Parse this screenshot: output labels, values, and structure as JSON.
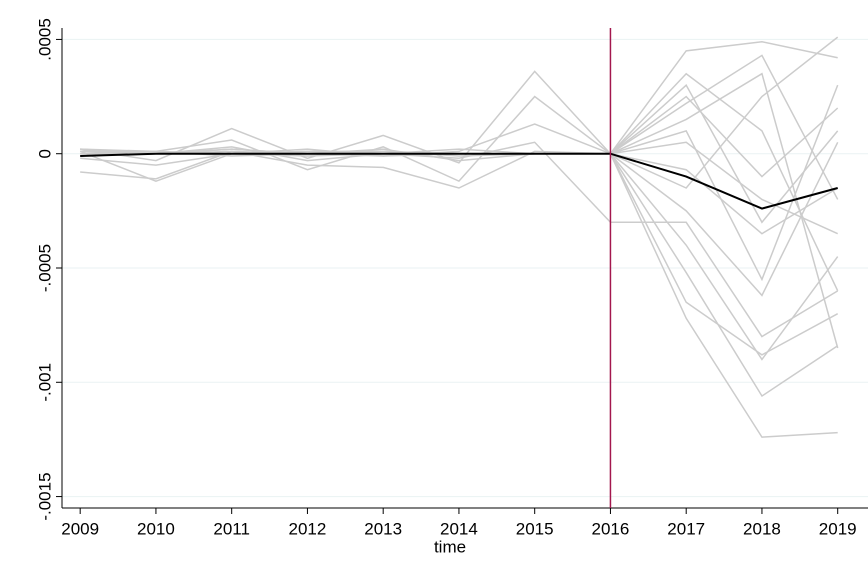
{
  "chart_data": {
    "type": "line",
    "x_label": "time",
    "x": [
      2009,
      2010,
      2011,
      2012,
      2013,
      2014,
      2015,
      2016,
      2017,
      2018,
      2019
    ],
    "xlim": [
      2008.76,
      2019.4
    ],
    "xticks": [
      2009,
      2010,
      2011,
      2012,
      2013,
      2014,
      2015,
      2016,
      2017,
      2018,
      2019
    ],
    "ylim": [
      -0.00155,
      0.00055
    ],
    "yticks": [
      {
        "value": 0.0005,
        "label": ".0005"
      },
      0,
      {
        "value": -0.0005,
        "label": "-.0005"
      },
      {
        "value": -0.001,
        "label": "-.001"
      },
      {
        "value": -0.0015,
        "label": "-.0015"
      }
    ],
    "grid": true,
    "vline": {
      "x": 2016,
      "color": "#a3174e"
    },
    "series": [
      {
        "color": "#cccccc",
        "values": [
          1e-05,
          0,
          2e-05,
          0,
          1e-05,
          -1e-05,
          0,
          0,
          0.00045,
          0.00049,
          0.00042
        ]
      },
      {
        "color": "#cccccc",
        "values": [
          -8e-05,
          -0.00011,
          1e-05,
          -5e-05,
          -6e-05,
          -0.00015,
          1e-05,
          0,
          -0.00072,
          -0.00124,
          -0.00122
        ]
      },
      {
        "color": "#cccccc",
        "values": [
          2e-05,
          -3e-05,
          0.00011,
          -2e-05,
          8e-05,
          -4e-05,
          0.00036,
          0,
          0.0003,
          -0.0003,
          0.0001
        ]
      },
      {
        "color": "#cccccc",
        "values": [
          0,
          1e-05,
          6e-05,
          -7e-05,
          3e-05,
          -0.00012,
          0.00025,
          0,
          -0.00052,
          -0.00106,
          -0.00084
        ]
      },
      {
        "color": "#cccccc",
        "values": [
          1e-05,
          -0.00012,
          0,
          2e-05,
          -1e-05,
          1e-05,
          0.00013,
          0,
          0.00022,
          0.00043,
          -0.0002
        ]
      },
      {
        "color": "#cccccc",
        "values": [
          0,
          0,
          3e-05,
          -3e-05,
          0,
          -2e-05,
          5e-05,
          -0.0003,
          -0.0003,
          -0.0008,
          -0.0006
        ]
      },
      {
        "color": "#cccccc",
        "values": [
          2e-05,
          0,
          0,
          1e-05,
          1e-05,
          0,
          0,
          0,
          0.0001,
          -0.00055,
          0.0003
        ]
      },
      {
        "color": "#cccccc",
        "values": [
          -2e-05,
          -5e-05,
          0,
          0,
          2e-05,
          -3e-05,
          0,
          0,
          -0.00015,
          0.00025,
          0.00051
        ]
      },
      {
        "color": "#cccccc",
        "values": [
          1e-05,
          1e-05,
          -1e-05,
          0,
          0,
          2e-05,
          0,
          0,
          -0.0004,
          -0.0009,
          -0.00045
        ]
      },
      {
        "color": "#cccccc",
        "values": [
          0,
          0,
          2e-05,
          0,
          -1e-05,
          0,
          0,
          0,
          0.00035,
          0.0001,
          -0.0006
        ]
      },
      {
        "color": "#cccccc",
        "values": [
          2e-05,
          1e-05,
          0,
          1e-05,
          0,
          0,
          0,
          0,
          -0.00025,
          -0.00062,
          5e-05
        ]
      },
      {
        "color": "#cccccc",
        "values": [
          -1e-05,
          0,
          0,
          0,
          0,
          0,
          0,
          0,
          5e-05,
          -0.0002,
          -0.00035
        ]
      },
      {
        "color": "#cccccc",
        "values": [
          1e-05,
          0,
          1e-05,
          0,
          0,
          0,
          0,
          0,
          0.00025,
          -0.0001,
          0.0002
        ]
      },
      {
        "color": "#cccccc",
        "values": [
          0,
          0,
          0,
          0,
          0,
          0,
          0,
          0,
          -7e-05,
          -0.00035,
          -0.00015
        ]
      },
      {
        "color": "#cccccc",
        "values": [
          1e-05,
          0,
          0,
          -1e-05,
          0,
          0,
          0,
          0,
          -0.00065,
          -0.00088,
          -0.0007
        ]
      },
      {
        "color": "#cccccc",
        "values": [
          0,
          0,
          0,
          0,
          0,
          0,
          0,
          0,
          0.00015,
          0.00035,
          -0.00085
        ]
      },
      {
        "color": "#000000",
        "values": [
          -1e-05,
          0,
          0,
          0,
          0,
          0,
          0,
          0,
          -0.0001,
          -0.00024,
          -0.00015
        ]
      }
    ]
  }
}
